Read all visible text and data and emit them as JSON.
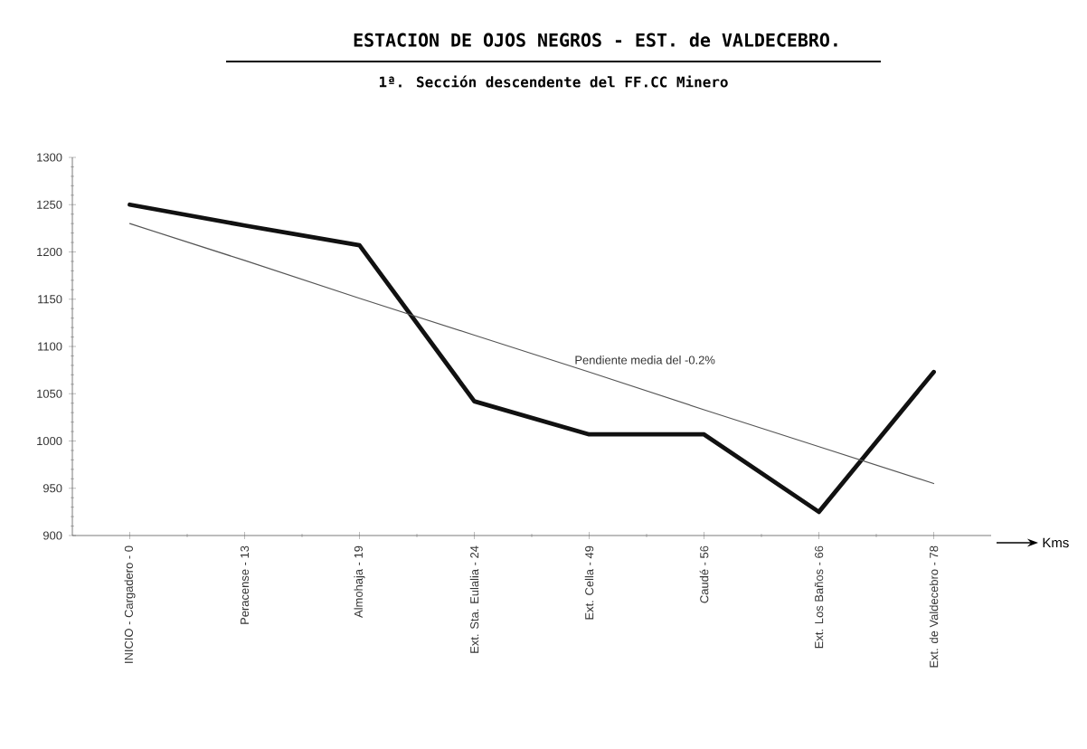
{
  "chart_data": {
    "type": "line",
    "title": "ESTACION DE OJOS NEGROS - EST. de VALDECEBRO.",
    "subtitle": "1ª. Sección descendente del FF.CC  Minero",
    "xlabel": "Kms",
    "categories": [
      "INICIO - Cargadero - 0",
      "Peracense - 13",
      "Almohaja - 19",
      "Ext. Sta. Eulalia - 24",
      "Ext. Cella - 49",
      "Caudé - 56",
      "Ext. Los Baños - 66",
      "Ext. de Valdecebro - 78"
    ],
    "series": [
      {
        "color": "#111111",
        "values": [
          1250,
          1228,
          1207,
          1042,
          1007,
          1007,
          925,
          1073
        ]
      },
      {
        "type": "line",
        "name": "Pendiente media  del -0.2%",
        "color": "#555555",
        "values": [
          1230,
          1191,
          1151,
          1112,
          1073,
          1033,
          994,
          955
        ]
      }
    ],
    "ylim": [
      900,
      1300
    ],
    "yticks": [
      900,
      950,
      1000,
      1050,
      1100,
      1150,
      1200,
      1250,
      1300
    ],
    "grid": false,
    "legend": false,
    "marker": "none",
    "line_style": "solid"
  }
}
